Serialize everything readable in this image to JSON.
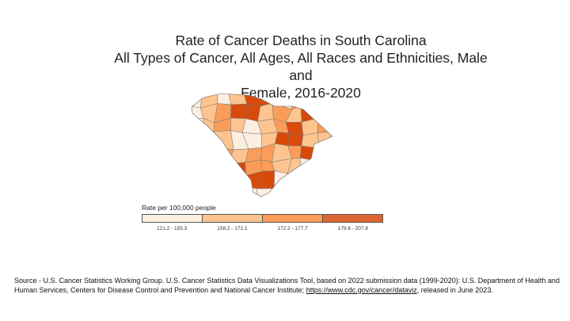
{
  "title_lines": [
    "Rate of Cancer Deaths in South Carolina",
    "All Types of Cancer, All Ages, All Races and Ethnicities, Male and",
    "Female, 2016-2020"
  ],
  "chart_data": {
    "type": "choropleth",
    "region": "South Carolina counties",
    "legend": {
      "title": "Rate per 100,000 people",
      "classes": [
        {
          "label": "121.2 - 155.3",
          "color": "#fdeee2"
        },
        {
          "label": "158.2 - 172.1",
          "color": "#fcc48f"
        },
        {
          "label": "172.2 - 177.7",
          "color": "#fb9d58"
        },
        {
          "label": "179.6 - 207.8",
          "color": "#dc6530"
        }
      ]
    },
    "map_dark_color": "#d84a0a"
  },
  "source": {
    "text_before": "Source - U.S. Cancer Statistics Working Group. U.S. Cancer Statistics Data Visualizations Tool, based on 2022 submission data (1999-2020): U.S. Department of Health and Human Services, Centers for Disease Control and Prevention and National Cancer Institute; ",
    "link": "https://www.cdc.gov/cancer/dataviz",
    "text_after": ", released in June 2023."
  }
}
